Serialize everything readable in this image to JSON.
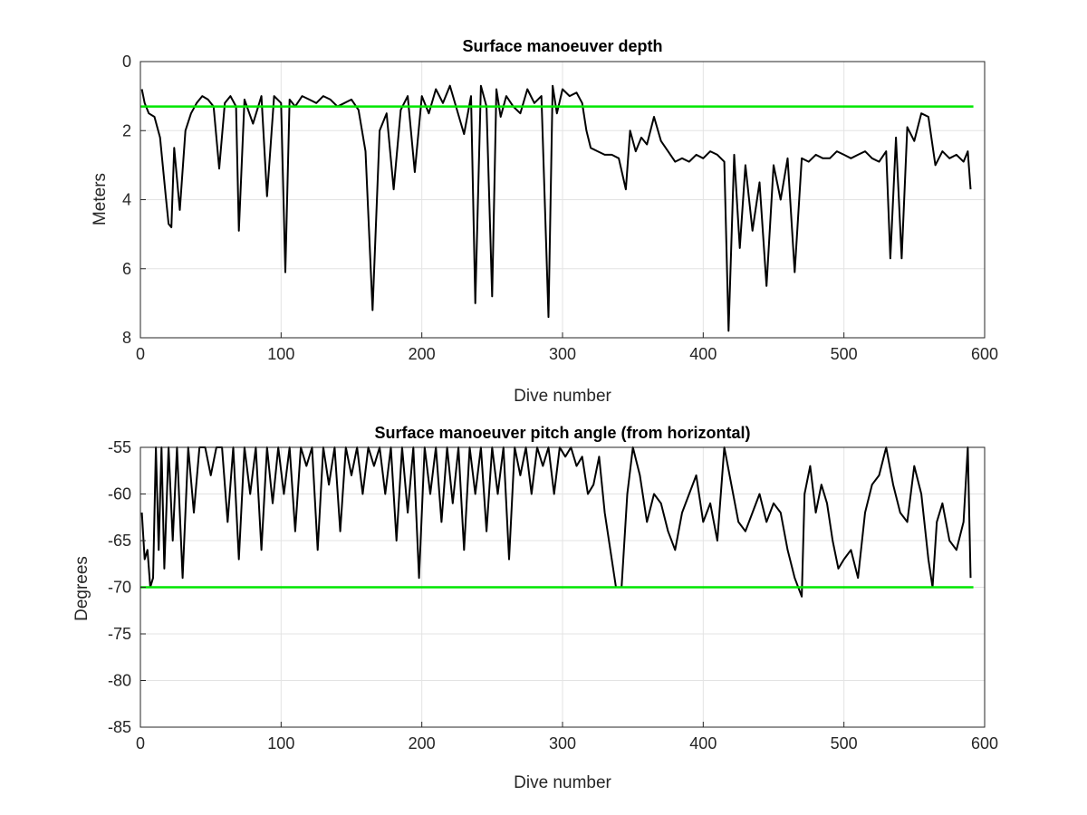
{
  "chart_data": [
    {
      "type": "line",
      "title": "Surface manoeuver depth",
      "xlabel": "Dive number",
      "ylabel": "Meters",
      "xlim": [
        0,
        600
      ],
      "ylim": [
        0,
        8
      ],
      "y_reversed": true,
      "x_ticks": [
        "0",
        "100",
        "200",
        "300",
        "400",
        "500",
        "600"
      ],
      "y_ticks": [
        "0",
        "2",
        "4",
        "6",
        "8"
      ],
      "grid": true,
      "colors": {
        "data": "#000000",
        "reference": "#00e600"
      },
      "series": [
        {
          "x": [
            1,
            3,
            6,
            10,
            14,
            18,
            20,
            22,
            24,
            28,
            32,
            36,
            40,
            44,
            48,
            52,
            56,
            60,
            64,
            68,
            70,
            74,
            80,
            86,
            90,
            95,
            100,
            103,
            106,
            110,
            115,
            120,
            125,
            130,
            135,
            140,
            145,
            150,
            155,
            160,
            165,
            170,
            175,
            180,
            185,
            190,
            195,
            200,
            205,
            210,
            215,
            220,
            225,
            230,
            235,
            238,
            242,
            246,
            250,
            253,
            256,
            260,
            265,
            270,
            275,
            280,
            285,
            290,
            293,
            296,
            300,
            305,
            310,
            314,
            317,
            320,
            325,
            330,
            335,
            340,
            345,
            348,
            352,
            356,
            360,
            365,
            370,
            375,
            380,
            385,
            390,
            395,
            400,
            405,
            410,
            415,
            418,
            422,
            426,
            430,
            435,
            440,
            445,
            450,
            455,
            460,
            465,
            470,
            475,
            480,
            485,
            490,
            495,
            500,
            505,
            510,
            515,
            520,
            525,
            530,
            533,
            537,
            541,
            545,
            550,
            555,
            560,
            565,
            570,
            575,
            580,
            585,
            588,
            590
          ],
          "y": [
            0.8,
            1.2,
            1.5,
            1.6,
            2.2,
            3.9,
            4.7,
            4.8,
            2.5,
            4.3,
            2.0,
            1.5,
            1.2,
            1.0,
            1.1,
            1.3,
            3.1,
            1.2,
            1.0,
            1.3,
            4.9,
            1.1,
            1.8,
            1.0,
            3.9,
            1.0,
            1.2,
            6.1,
            1.1,
            1.3,
            1.0,
            1.1,
            1.2,
            1.0,
            1.1,
            1.3,
            1.2,
            1.1,
            1.4,
            2.6,
            7.2,
            2.0,
            1.5,
            3.7,
            1.4,
            1.0,
            3.2,
            1.0,
            1.5,
            0.8,
            1.2,
            0.7,
            1.4,
            2.1,
            1.0,
            7.0,
            0.7,
            1.3,
            6.8,
            0.8,
            1.6,
            1.0,
            1.3,
            1.5,
            0.8,
            1.2,
            1.0,
            7.4,
            0.7,
            1.5,
            0.8,
            1.0,
            0.9,
            1.2,
            2.0,
            2.5,
            2.6,
            2.7,
            2.7,
            2.8,
            3.7,
            2.0,
            2.6,
            2.2,
            2.4,
            1.6,
            2.3,
            2.6,
            2.9,
            2.8,
            2.9,
            2.7,
            2.8,
            2.6,
            2.7,
            2.9,
            7.8,
            2.7,
            5.4,
            3.0,
            4.9,
            3.5,
            6.5,
            3.0,
            4.0,
            2.8,
            6.1,
            2.8,
            2.9,
            2.7,
            2.8,
            2.8,
            2.6,
            2.7,
            2.8,
            2.7,
            2.6,
            2.8,
            2.9,
            2.6,
            5.7,
            2.2,
            5.7,
            1.9,
            2.3,
            1.5,
            1.6,
            3.0,
            2.6,
            2.8,
            2.7,
            2.9,
            2.6,
            3.7
          ]
        }
      ],
      "reference_line": {
        "y": 1.3,
        "x_range": [
          0,
          592
        ]
      }
    },
    {
      "type": "line",
      "title": "Surface manoeuver pitch angle (from horizontal)",
      "xlabel": "Dive number",
      "ylabel": "Degrees",
      "xlim": [
        0,
        600
      ],
      "ylim": [
        -85,
        -55
      ],
      "x_ticks": [
        "0",
        "100",
        "200",
        "300",
        "400",
        "500",
        "600"
      ],
      "y_ticks": [
        "-55",
        "-60",
        "-65",
        "-70",
        "-75",
        "-80",
        "-85"
      ],
      "grid": true,
      "colors": {
        "data": "#000000",
        "reference": "#00e600"
      },
      "series": [
        {
          "x": [
            1,
            3,
            5,
            7,
            9,
            11,
            13,
            15,
            17,
            20,
            23,
            26,
            30,
            34,
            38,
            42,
            46,
            50,
            54,
            58,
            62,
            66,
            70,
            74,
            78,
            82,
            86,
            90,
            94,
            98,
            102,
            106,
            110,
            114,
            118,
            122,
            126,
            130,
            134,
            138,
            142,
            146,
            150,
            154,
            158,
            162,
            166,
            170,
            174,
            178,
            182,
            186,
            190,
            194,
            198,
            202,
            206,
            210,
            214,
            218,
            222,
            226,
            230,
            234,
            238,
            242,
            246,
            250,
            254,
            258,
            262,
            266,
            270,
            274,
            278,
            282,
            286,
            290,
            294,
            298,
            302,
            306,
            310,
            314,
            318,
            322,
            326,
            330,
            334,
            338,
            342,
            346,
            350,
            355,
            360,
            365,
            370,
            375,
            380,
            385,
            390,
            395,
            400,
            405,
            410,
            415,
            420,
            425,
            430,
            435,
            440,
            445,
            450,
            455,
            460,
            465,
            470,
            472,
            476,
            480,
            484,
            488,
            492,
            496,
            500,
            505,
            510,
            515,
            520,
            525,
            530,
            535,
            540,
            545,
            550,
            555,
            560,
            563,
            566,
            570,
            575,
            580,
            585,
            588,
            590
          ],
          "y": [
            -62,
            -67,
            -66,
            -70,
            -69,
            -55,
            -66,
            -55,
            -68,
            -55,
            -65,
            -55,
            -69,
            -55,
            -62,
            -55,
            -55,
            -58,
            -55,
            -55,
            -63,
            -55,
            -67,
            -55,
            -60,
            -55,
            -66,
            -55,
            -61,
            -55,
            -60,
            -55,
            -64,
            -55,
            -57,
            -55,
            -66,
            -55,
            -59,
            -55,
            -64,
            -55,
            -58,
            -55,
            -60,
            -55,
            -57,
            -55,
            -60,
            -55,
            -65,
            -55,
            -62,
            -55,
            -69,
            -55,
            -60,
            -55,
            -63,
            -55,
            -61,
            -55,
            -66,
            -55,
            -60,
            -55,
            -64,
            -55,
            -60,
            -55,
            -67,
            -55,
            -58,
            -55,
            -60,
            -55,
            -57,
            -55,
            -60,
            -55,
            -56,
            -55,
            -57,
            -56,
            -60,
            -59,
            -56,
            -62,
            -66,
            -70,
            -70,
            -60,
            -55,
            -58,
            -63,
            -60,
            -61,
            -64,
            -66,
            -62,
            -60,
            -58,
            -63,
            -61,
            -65,
            -55,
            -59,
            -63,
            -64,
            -62,
            -60,
            -63,
            -61,
            -62,
            -66,
            -69,
            -71,
            -60,
            -57,
            -62,
            -59,
            -61,
            -65,
            -68,
            -67,
            -66,
            -69,
            -62,
            -59,
            -58,
            -55,
            -59,
            -62,
            -63,
            -57,
            -60,
            -67,
            -70,
            -63,
            -61,
            -65,
            -66,
            -63,
            -55,
            -69
          ]
        }
      ],
      "reference_line": {
        "y": -70,
        "x_range": [
          0,
          592
        ]
      }
    }
  ]
}
